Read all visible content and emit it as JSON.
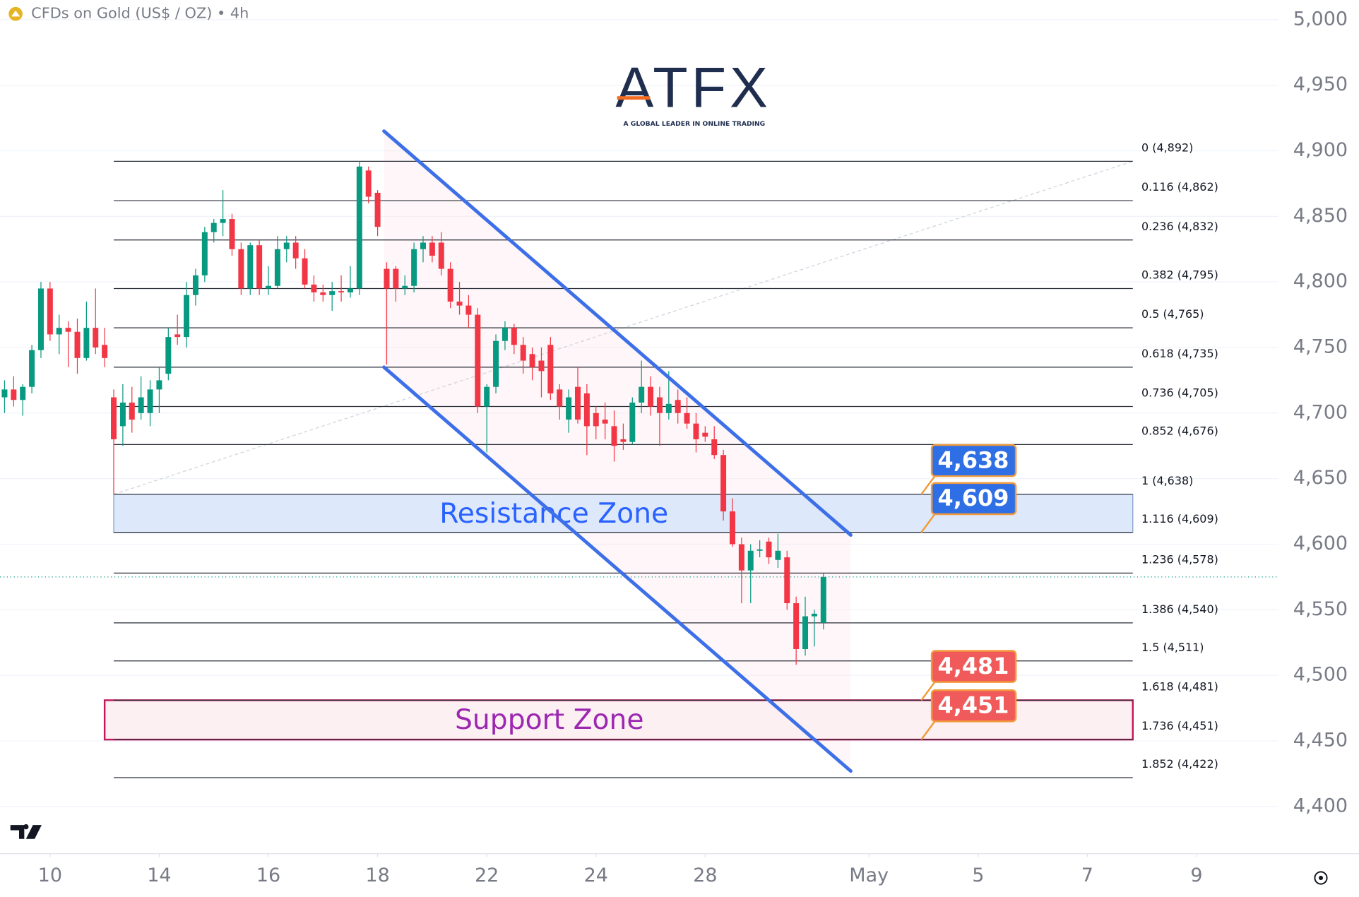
{
  "chart_data": {
    "type": "candlestick",
    "title": "CFDs on Gold (US$ / OZ) • 4h",
    "up_color": "#089981",
    "down_color": "#f23645",
    "xlim": [
      -0.5,
      140
    ],
    "ylim": [
      4364,
      5015
    ],
    "xticks": [
      {
        "value": 5,
        "label": "10"
      },
      {
        "value": 17,
        "label": "14"
      },
      {
        "value": 29,
        "label": "16"
      },
      {
        "value": 41,
        "label": "18"
      },
      {
        "value": 53,
        "label": "22"
      },
      {
        "value": 65,
        "label": "24"
      },
      {
        "value": 77,
        "label": "28"
      },
      {
        "value": 95,
        "label": "May"
      },
      {
        "value": 107,
        "label": "5"
      },
      {
        "value": 119,
        "label": "7"
      },
      {
        "value": 131,
        "label": "9"
      }
    ],
    "yticks": [
      {
        "value": 4400,
        "label": "4,400"
      },
      {
        "value": 4450,
        "label": "4,450"
      },
      {
        "value": 4500,
        "label": "4,500"
      },
      {
        "value": 4550,
        "label": "4,550"
      },
      {
        "value": 4600,
        "label": "4,600"
      },
      {
        "value": 4650,
        "label": "4,650"
      },
      {
        "value": 4700,
        "label": "4,700"
      },
      {
        "value": 4750,
        "label": "4,750"
      },
      {
        "value": 4800,
        "label": "4,800"
      },
      {
        "value": 4850,
        "label": "4,850"
      },
      {
        "value": 4900,
        "label": "4,900"
      },
      {
        "value": 4950,
        "label": "4,950"
      },
      {
        "value": 5000,
        "label": "5,000"
      }
    ],
    "grid": true,
    "x": [
      0,
      1,
      2,
      3,
      4,
      5,
      6,
      7,
      8,
      9,
      10,
      11,
      12,
      13,
      14,
      15,
      16,
      17,
      18,
      19,
      20,
      21,
      22,
      23,
      24,
      25,
      26,
      27,
      28,
      29,
      30,
      31,
      32,
      33,
      34,
      35,
      36,
      37,
      38,
      39,
      40,
      41,
      42,
      43,
      44,
      45,
      46,
      47,
      48,
      49,
      50,
      51,
      52,
      53,
      54,
      55,
      56,
      57,
      58,
      59,
      60,
      61,
      62,
      63,
      64,
      65,
      66,
      67,
      68,
      69,
      70,
      71,
      72,
      73,
      74,
      75,
      76,
      77,
      78,
      79,
      80,
      81,
      82,
      83,
      84,
      85,
      86,
      87,
      88,
      89,
      90
    ],
    "ohlc": [
      [
        4712,
        4725,
        4700,
        4718
      ],
      [
        4718,
        4728,
        4705,
        4710
      ],
      [
        4710,
        4722,
        4698,
        4720
      ],
      [
        4720,
        4752,
        4715,
        4748
      ],
      [
        4748,
        4800,
        4742,
        4795
      ],
      [
        4795,
        4800,
        4755,
        4760
      ],
      [
        4760,
        4775,
        4745,
        4765
      ],
      [
        4765,
        4770,
        4735,
        4762
      ],
      [
        4762,
        4772,
        4730,
        4742
      ],
      [
        4742,
        4785,
        4740,
        4765
      ],
      [
        4765,
        4795,
        4745,
        4750
      ],
      [
        4752,
        4765,
        4735,
        4742
      ],
      [
        4712,
        4718,
        4638,
        4680
      ],
      [
        4690,
        4722,
        4675,
        4708
      ],
      [
        4708,
        4720,
        4685,
        4695
      ],
      [
        4700,
        4728,
        4695,
        4712
      ],
      [
        4700,
        4725,
        4690,
        4718
      ],
      [
        4718,
        4735,
        4700,
        4725
      ],
      [
        4730,
        4765,
        4725,
        4758
      ],
      [
        4760,
        4775,
        4752,
        4758
      ],
      [
        4758,
        4800,
        4750,
        4790
      ],
      [
        4790,
        4810,
        4782,
        4805
      ],
      [
        4805,
        4842,
        4800,
        4838
      ],
      [
        4838,
        4848,
        4830,
        4845
      ],
      [
        4845,
        4870,
        4835,
        4848
      ],
      [
        4848,
        4852,
        4820,
        4825
      ],
      [
        4825,
        4830,
        4790,
        4795
      ],
      [
        4795,
        4830,
        4790,
        4828
      ],
      [
        4828,
        4832,
        4790,
        4795
      ],
      [
        4795,
        4812,
        4790,
        4797
      ],
      [
        4797,
        4835,
        4795,
        4825
      ],
      [
        4825,
        4835,
        4815,
        4830
      ],
      [
        4830,
        4835,
        4810,
        4818
      ],
      [
        4818,
        4825,
        4795,
        4798
      ],
      [
        4798,
        4805,
        4785,
        4792
      ],
      [
        4792,
        4798,
        4785,
        4790
      ],
      [
        4790,
        4800,
        4778,
        4793
      ],
      [
        4793,
        4805,
        4785,
        4792
      ],
      [
        4792,
        4812,
        4788,
        4795
      ],
      [
        4795,
        4892,
        4790,
        4888
      ],
      [
        4885,
        4888,
        4860,
        4865
      ],
      [
        4868,
        4870,
        4835,
        4842
      ],
      [
        4810,
        4815,
        4737,
        4795
      ],
      [
        4810,
        4812,
        4785,
        4795
      ],
      [
        4795,
        4805,
        4790,
        4797
      ],
      [
        4797,
        4830,
        4792,
        4825
      ],
      [
        4825,
        4835,
        4815,
        4830
      ],
      [
        4830,
        4835,
        4815,
        4820
      ],
      [
        4830,
        4838,
        4805,
        4810
      ],
      [
        4810,
        4815,
        4780,
        4785
      ],
      [
        4785,
        4800,
        4775,
        4782
      ],
      [
        4782,
        4790,
        4765,
        4775
      ],
      [
        4775,
        4780,
        4700,
        4705
      ],
      [
        4705,
        4722,
        4670,
        4720
      ],
      [
        4720,
        4760,
        4715,
        4755
      ],
      [
        4755,
        4770,
        4748,
        4765
      ],
      [
        4765,
        4768,
        4745,
        4752
      ],
      [
        4752,
        4758,
        4730,
        4740
      ],
      [
        4745,
        4750,
        4725,
        4735
      ],
      [
        4740,
        4750,
        4712,
        4732
      ],
      [
        4752,
        4758,
        4710,
        4715
      ],
      [
        4718,
        4722,
        4695,
        4705
      ],
      [
        4695,
        4718,
        4685,
        4712
      ],
      [
        4720,
        4735,
        4692,
        4695
      ],
      [
        4715,
        4722,
        4668,
        4690
      ],
      [
        4700,
        4705,
        4680,
        4690
      ],
      [
        4695,
        4708,
        4680,
        4692
      ],
      [
        4690,
        4702,
        4663,
        4675
      ],
      [
        4680,
        4692,
        4672,
        4678
      ],
      [
        4678,
        4712,
        4676,
        4708
      ],
      [
        4708,
        4740,
        4700,
        4720
      ],
      [
        4720,
        4728,
        4698,
        4705
      ],
      [
        4712,
        4720,
        4675,
        4700
      ],
      [
        4700,
        4732,
        4695,
        4707
      ],
      [
        4710,
        4718,
        4692,
        4700
      ],
      [
        4700,
        4712,
        4688,
        4692
      ],
      [
        4692,
        4700,
        4670,
        4680
      ],
      [
        4685,
        4690,
        4678,
        4682
      ],
      [
        4680,
        4690,
        4665,
        4668
      ],
      [
        4668,
        4672,
        4618,
        4625
      ],
      [
        4625,
        4635,
        4598,
        4600
      ],
      [
        4600,
        4605,
        4555,
        4580
      ],
      [
        4580,
        4600,
        4555,
        4595
      ],
      [
        4595,
        4603,
        4590,
        4596
      ],
      [
        4602,
        4605,
        4585,
        4590
      ],
      [
        4588,
        4608,
        4582,
        4595
      ],
      [
        4590,
        4595,
        4550,
        4555
      ],
      [
        4555,
        4560,
        4508,
        4520
      ],
      [
        4520,
        4560,
        4515,
        4545
      ],
      [
        4545,
        4550,
        4522,
        4547
      ],
      [
        4540,
        4578,
        4535,
        4575
      ]
    ],
    "fib_x": [
      12,
      124
    ],
    "fib_levels": [
      {
        "value": 4892,
        "label": "0 (4,892)"
      },
      {
        "value": 4862,
        "label": "0.116 (4,862)"
      },
      {
        "value": 4832,
        "label": "0.236 (4,832)"
      },
      {
        "value": 4795,
        "label": "0.382 (4,795)"
      },
      {
        "value": 4765,
        "label": "0.5 (4,765)"
      },
      {
        "value": 4735,
        "label": "0.618 (4,735)"
      },
      {
        "value": 4705,
        "label": "0.736 (4,705)"
      },
      {
        "value": 4676,
        "label": "0.852 (4,676)"
      },
      {
        "value": 4638,
        "label": "1 (4,638)"
      },
      {
        "value": 4609,
        "label": "1.116 (4,609)"
      },
      {
        "value": 4578,
        "label": "1.236 (4,578)"
      },
      {
        "value": 4540,
        "label": "1.386 (4,540)"
      },
      {
        "value": 4511,
        "label": "1.5 (4,511)"
      },
      {
        "value": 4481,
        "label": "1.618 (4,481)"
      },
      {
        "value": 4451,
        "label": "1.736 (4,451)"
      },
      {
        "value": 4422,
        "label": "1.852 (4,422)"
      }
    ],
    "trend_line": [
      [
        12,
        4638
      ],
      [
        124,
        4892
      ]
    ],
    "channel": {
      "upper": [
        [
          41.7,
          4915
        ],
        [
          93,
          4607
        ]
      ],
      "lower": [
        [
          41.7,
          4735
        ],
        [
          93,
          4427
        ]
      ],
      "color": "#3d6fe8"
    },
    "zones": [
      {
        "label": "Resistance Zone",
        "low": 4609,
        "high": 4638,
        "x": [
          12,
          124
        ],
        "color": "#2962ff",
        "fill": "#dde8fb",
        "border": "#7f9ccf"
      },
      {
        "label": "Support Zone",
        "low": 4451,
        "high": 4481,
        "x": [
          11,
          124
        ],
        "color": "#9c27b0",
        "fill": "#fdf0f3",
        "border": "#c2185b"
      }
    ],
    "price_tags": [
      {
        "value": 4638,
        "label": "4,638",
        "color": "#2f6fe6"
      },
      {
        "value": 4609,
        "label": "4,609",
        "color": "#2f6fe6"
      },
      {
        "value": 4481,
        "label": "4,481",
        "color": "#f05a5a"
      },
      {
        "value": 4451,
        "label": "4,451",
        "color": "#f05a5a"
      }
    ]
  },
  "logo": {
    "name": "ATFX",
    "tagline": "A GLOBAL LEADER IN ONLINE TRADING"
  }
}
